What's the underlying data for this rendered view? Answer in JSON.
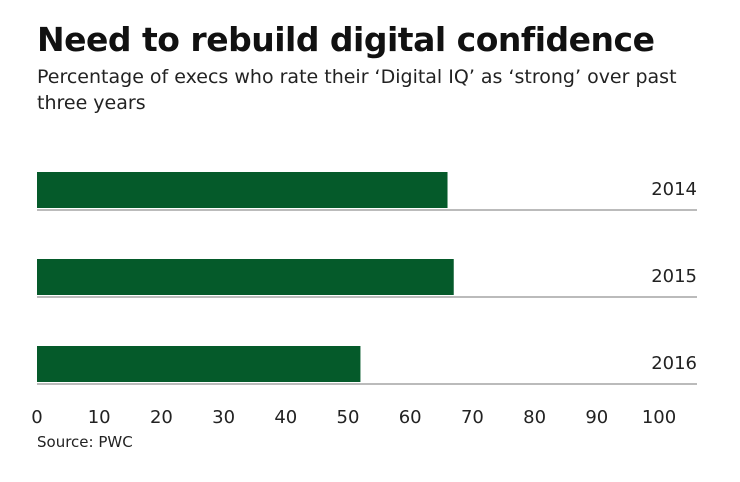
{
  "chart_data": {
    "type": "hbar",
    "title": "Need to rebuild digital confidence",
    "subtitle": "Percentage of execs who rate their ‘Digital IQ’ as ‘strong’ over past three years",
    "categories": [
      "2014",
      "2015",
      "2016"
    ],
    "values": [
      66,
      67,
      52
    ],
    "color": "#055a2a",
    "xlim": [
      0,
      100
    ],
    "xticks": [
      0,
      10,
      20,
      30,
      40,
      50,
      60,
      70,
      80,
      90,
      100
    ],
    "source": "Source: PWC"
  }
}
